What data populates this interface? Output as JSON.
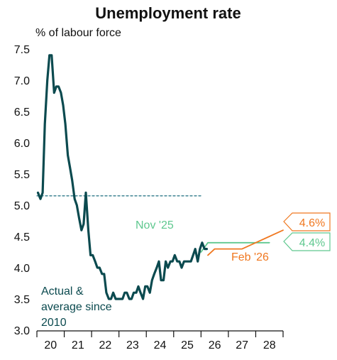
{
  "chart_data": {
    "type": "line",
    "title": "Unemployment rate",
    "ylabel": "% of labour force",
    "xlabel": "",
    "ylim": [
      3.0,
      7.5
    ],
    "xlim": [
      2019.5,
      2028.5
    ],
    "yticks": [
      3.0,
      3.5,
      4.0,
      4.5,
      5.0,
      5.5,
      6.0,
      6.5,
      7.0,
      7.5
    ],
    "ytick_labels": [
      "3.0",
      "3.5",
      "4.0",
      "4.5",
      "5.0",
      "5.5",
      "6.0",
      "6.5",
      "7.0",
      "7.5"
    ],
    "xtick_labels": [
      "20",
      "21",
      "22",
      "23",
      "24",
      "25",
      "26",
      "27",
      "28"
    ],
    "xtick_positions": [
      2020,
      2021,
      2022,
      2023,
      2024,
      2025,
      2026,
      2027,
      2028
    ],
    "grid": false,
    "colors": {
      "actual": "#0b4a4f",
      "average": "#2f7a8a",
      "forecast_nov": "#5fc88f",
      "forecast_feb": "#f07820"
    },
    "series": [
      {
        "name": "Actual",
        "x": [
          2019.54,
          2019.63,
          2019.71,
          2019.79,
          2019.88,
          2019.96,
          2020.04,
          2020.13,
          2020.21,
          2020.29,
          2020.38,
          2020.46,
          2020.54,
          2020.63,
          2020.71,
          2020.79,
          2020.88,
          2020.96,
          2021.04,
          2021.13,
          2021.21,
          2021.29,
          2021.38,
          2021.46,
          2021.54,
          2021.63,
          2021.71,
          2021.79,
          2021.88,
          2021.96,
          2022.04,
          2022.13,
          2022.21,
          2022.29,
          2022.38,
          2022.46,
          2022.54,
          2022.63,
          2022.71,
          2022.79,
          2022.88,
          2022.96,
          2023.04,
          2023.13,
          2023.21,
          2023.29,
          2023.38,
          2023.46,
          2023.54,
          2023.63,
          2023.71,
          2023.79,
          2023.88,
          2023.96,
          2024.04,
          2024.13,
          2024.21,
          2024.29,
          2024.38,
          2024.46,
          2024.54,
          2024.63,
          2024.71,
          2024.79,
          2024.88,
          2024.96,
          2025.04,
          2025.13,
          2025.21,
          2025.29,
          2025.38,
          2025.46,
          2025.54,
          2025.63,
          2025.71
        ],
        "values": [
          5.2,
          5.1,
          5.2,
          6.3,
          7.0,
          7.4,
          7.4,
          6.8,
          6.9,
          6.9,
          6.8,
          6.6,
          6.3,
          5.8,
          5.6,
          5.4,
          5.1,
          5.0,
          4.8,
          4.6,
          4.7,
          5.2,
          4.6,
          4.2,
          4.2,
          4.1,
          4.0,
          4.0,
          3.9,
          3.9,
          3.6,
          3.5,
          3.5,
          3.6,
          3.5,
          3.5,
          3.5,
          3.5,
          3.6,
          3.6,
          3.5,
          3.5,
          3.6,
          3.6,
          3.7,
          3.6,
          3.5,
          3.7,
          3.7,
          3.6,
          3.8,
          3.9,
          4.0,
          4.1,
          3.8,
          3.8,
          4.1,
          4.0,
          4.1,
          4.1,
          4.2,
          4.1,
          4.1,
          4.0,
          4.1,
          4.1,
          4.1,
          4.1,
          4.2,
          4.3,
          4.1,
          4.3,
          4.4,
          4.3,
          4.3
        ]
      },
      {
        "name": "Average since 2010",
        "x": [
          2019.5,
          2025.5
        ],
        "values": [
          5.15,
          5.15
        ]
      },
      {
        "name": "Nov '25",
        "x": [
          2025.5,
          2025.75,
          2026.0,
          2027.0,
          2028.0
        ],
        "values": [
          4.25,
          4.4,
          4.4,
          4.4,
          4.4
        ]
      },
      {
        "name": "Feb '26",
        "x": [
          2025.75,
          2026.0,
          2026.5,
          2027.0,
          2027.5,
          2028.0,
          2028.5
        ],
        "values": [
          4.2,
          4.3,
          4.3,
          4.3,
          4.4,
          4.5,
          4.6
        ]
      }
    ],
    "annotations": {
      "actual": [
        "Actual &",
        "average since",
        "2010"
      ],
      "nov": "Nov '25",
      "feb": "Feb '26",
      "end_feb": "4.6%",
      "end_nov": "4.4%"
    }
  }
}
